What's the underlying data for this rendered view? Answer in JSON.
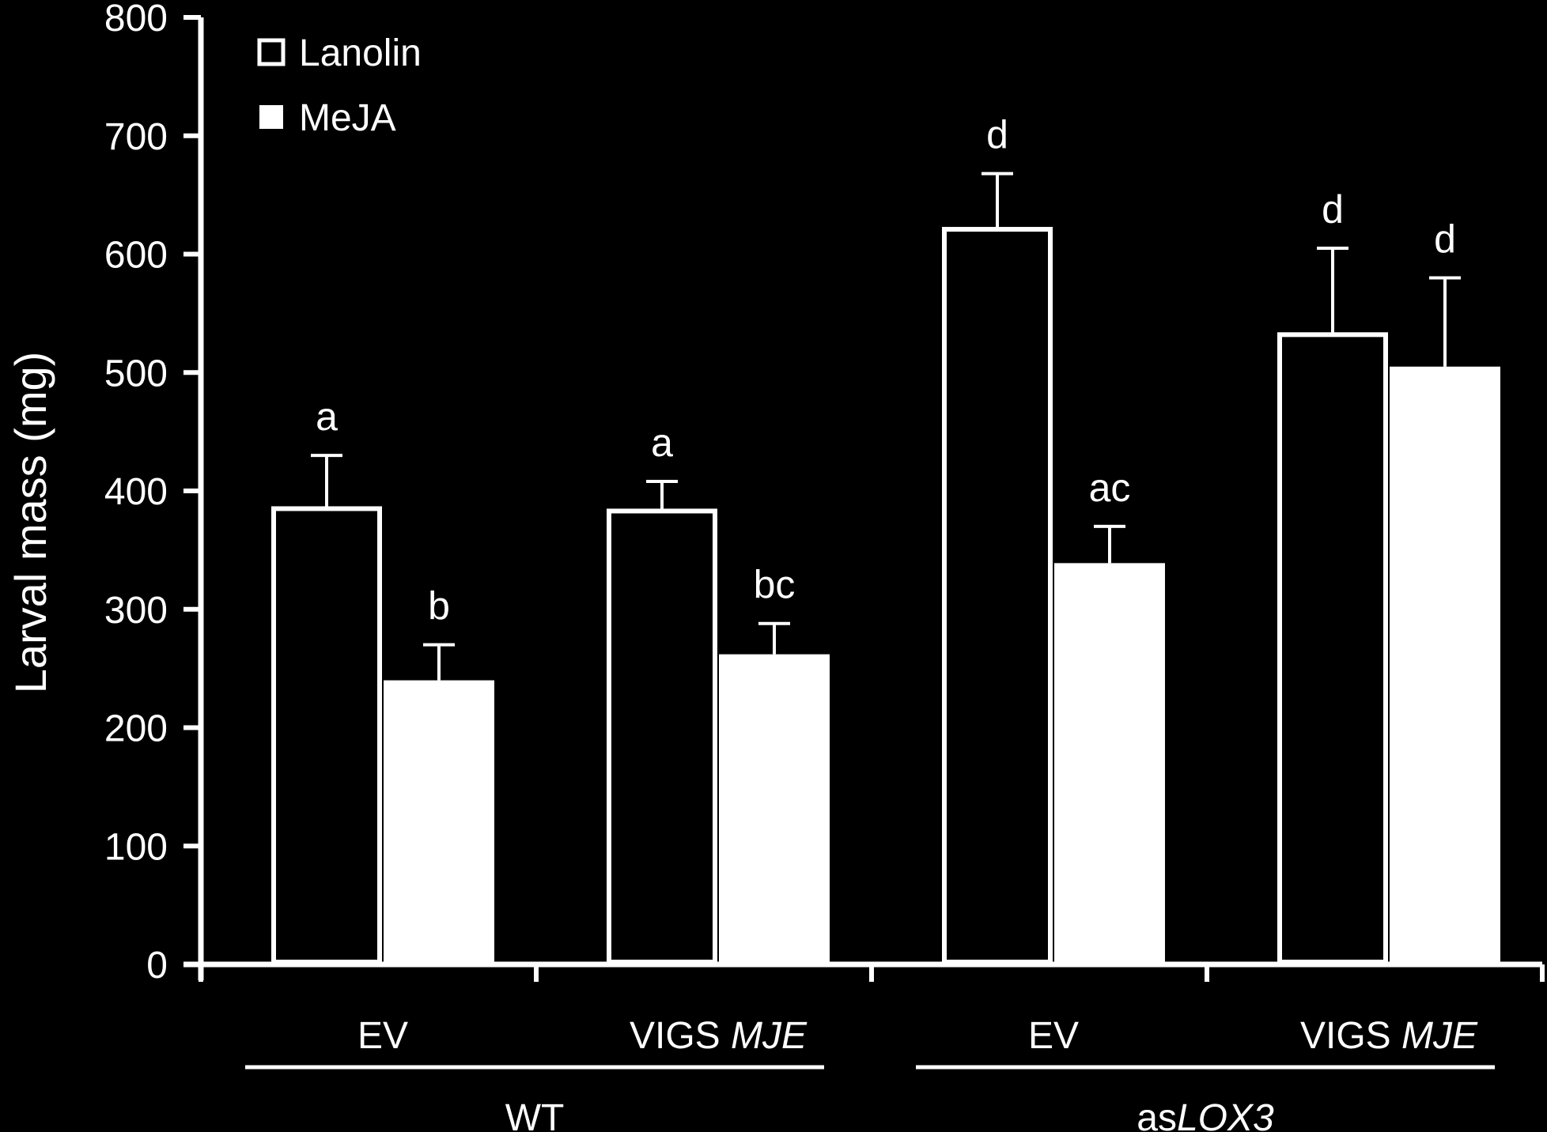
{
  "chart_data": {
    "type": "bar",
    "ylabel": "Larval mass (mg)",
    "ylim": [
      0,
      800
    ],
    "yticks": [
      0,
      100,
      200,
      300,
      400,
      500,
      600,
      700,
      800
    ],
    "grid": false,
    "legend_position": "top-left",
    "categories": [
      {
        "label": "EV",
        "italic": "",
        "group": "WT"
      },
      {
        "label": "VIGS ",
        "italic": "MJE",
        "group": "WT"
      },
      {
        "label": "EV",
        "italic": "",
        "group": "asLOX3"
      },
      {
        "label": "VIGS ",
        "italic": "MJE",
        "group": "asLOX3"
      }
    ],
    "groups": [
      {
        "prefix": "WT",
        "italic": ""
      },
      {
        "prefix": "as",
        "italic": "LOX3"
      }
    ],
    "series": [
      {
        "name": "Lanolin",
        "style": "open",
        "values": [
          385,
          383,
          621,
          532
        ],
        "errors": [
          45,
          25,
          47,
          73
        ],
        "letters": [
          "a",
          "a",
          "d",
          "d"
        ]
      },
      {
        "name": "MeJA",
        "style": "filled",
        "values": [
          240,
          262,
          339,
          505
        ],
        "errors": [
          30,
          26,
          31,
          75
        ],
        "letters": [
          "b",
          "bc",
          "ac",
          "d"
        ]
      }
    ],
    "colors": {
      "background": "#000000",
      "foreground": "#ffffff"
    }
  }
}
